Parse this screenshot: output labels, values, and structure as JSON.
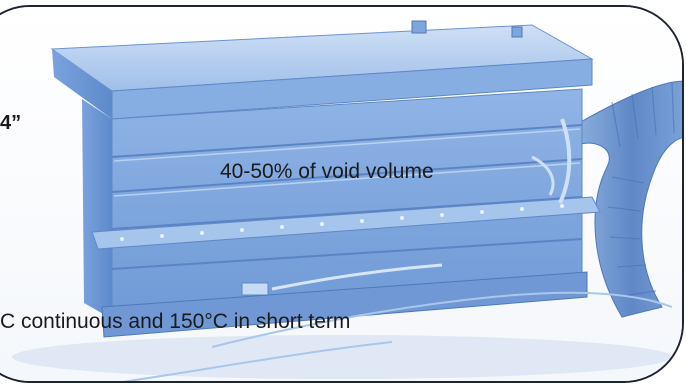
{
  "photo": {
    "subject": "Cold storage box with hose"
  },
  "overlay_text": {
    "line1": "4”",
    "line2": "40-50% of void volume",
    "line3": "C continuous and 150°C in short term"
  },
  "colors": {
    "tint": "#8fb6e8",
    "tint_dark": "#4f7fc4",
    "frame_border": "#1e2430"
  }
}
